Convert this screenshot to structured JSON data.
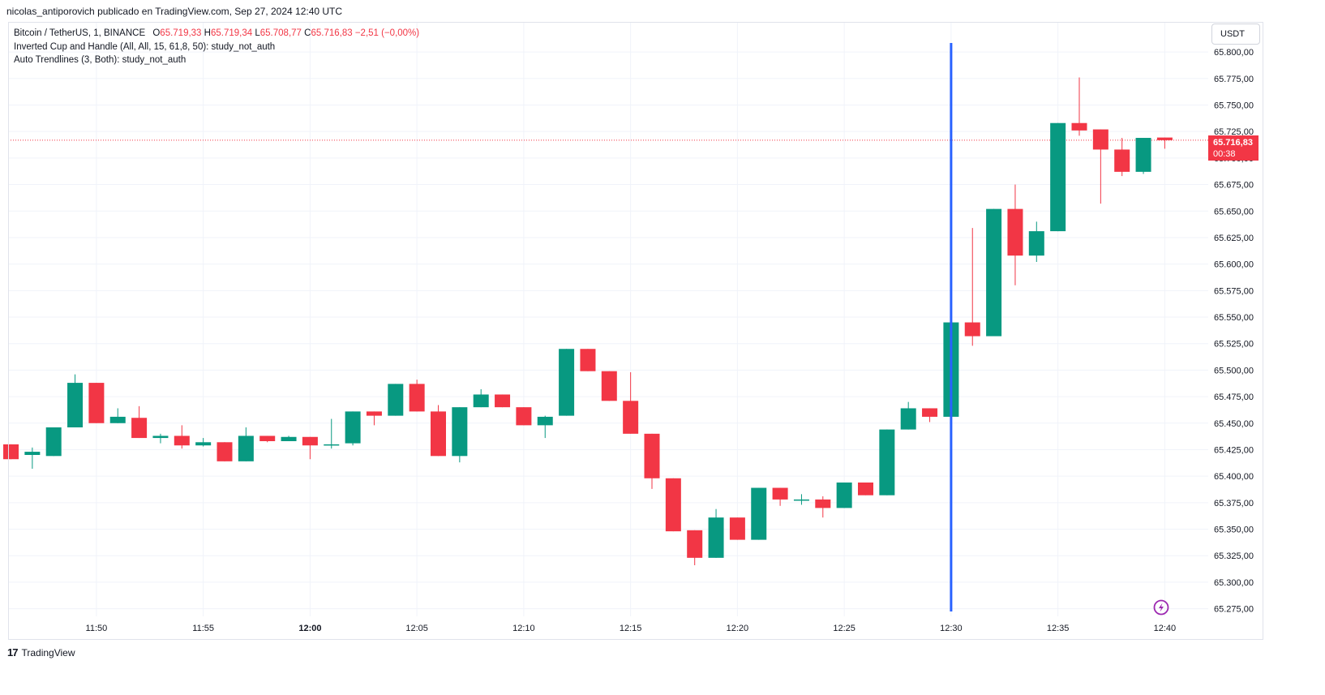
{
  "header": {
    "publisher_text": "nicolas_antiporovich publicado en TradingView.com, Sep 27, 2024 12:40 UTC"
  },
  "legend": {
    "symbol": "Bitcoin / TetherUS, 1, BINANCE",
    "o_label": "O",
    "o_value": "65.719,33",
    "h_label": "H",
    "h_value": "65.719,34",
    "l_label": "L",
    "l_value": "65.708,77",
    "c_label": "C",
    "c_value": "65.716,83",
    "change": "−2,51 (−0,00%)",
    "indicator1": "Inverted Cup and Handle (All, All, 15, 61,8, 50): study_not_auth",
    "indicator2": "Auto Trendlines (3, Both): study_not_auth"
  },
  "currency_button": "USDT",
  "last_price": {
    "value": "65.716,83",
    "countdown": "00:38"
  },
  "footer": {
    "brand": "TradingView",
    "logo": "17"
  },
  "colors": {
    "up": "#089981",
    "down": "#f23645",
    "marker": "#2962ff",
    "grid": "#f0f3fa",
    "text": "#131722"
  },
  "icons": {
    "alert": "lightning-bolt-icon"
  },
  "chart_data": {
    "type": "candlestick",
    "y_ticks": [
      65275,
      65300,
      65325,
      65350,
      65375,
      65400,
      65425,
      65450,
      65475,
      65500,
      65525,
      65550,
      65575,
      65600,
      65625,
      65650,
      65675,
      65700,
      65725,
      65750,
      65775,
      65800
    ],
    "y_tick_labels": [
      "65.275,00",
      "65.300,00",
      "65.325,00",
      "65.350,00",
      "65.375,00",
      "65.400,00",
      "65.425,00",
      "65.450,00",
      "65.475,00",
      "65.500,00",
      "65.525,00",
      "65.550,00",
      "65.575,00",
      "65.600,00",
      "65.625,00",
      "65.650,00",
      "65.675,00",
      "65.700,00",
      "65.725,00",
      "65.750,00",
      "65.775,00",
      "65.800,00"
    ],
    "x_tick_labels": [
      "11:50",
      "11:55",
      "12:00",
      "12:05",
      "12:10",
      "12:15",
      "12:20",
      "12:25",
      "12:30",
      "12:35",
      "12:40"
    ],
    "grid": true,
    "vertical_marker_time": "12:30",
    "candles": [
      {
        "t": "11:46",
        "o": 65430,
        "h": 65430,
        "l": 65416,
        "c": 65416
      },
      {
        "t": "11:47",
        "o": 65420,
        "h": 65427,
        "l": 65407,
        "c": 65423
      },
      {
        "t": "11:48",
        "o": 65419,
        "h": 65446,
        "l": 65419,
        "c": 65446
      },
      {
        "t": "11:49",
        "o": 65446,
        "h": 65496,
        "l": 65446,
        "c": 65488
      },
      {
        "t": "11:50",
        "o": 65488,
        "h": 65488,
        "l": 65450,
        "c": 65450
      },
      {
        "t": "11:51",
        "o": 65450,
        "h": 65464,
        "l": 65450,
        "c": 65456
      },
      {
        "t": "11:52",
        "o": 65455,
        "h": 65466,
        "l": 65436,
        "c": 65436
      },
      {
        "t": "11:53",
        "o": 65436,
        "h": 65440,
        "l": 65431,
        "c": 65438
      },
      {
        "t": "11:54",
        "o": 65438,
        "h": 65448,
        "l": 65426,
        "c": 65429
      },
      {
        "t": "11:55",
        "o": 65429,
        "h": 65436,
        "l": 65428,
        "c": 65432
      },
      {
        "t": "11:56",
        "o": 65432,
        "h": 65432,
        "l": 65414,
        "c": 65414
      },
      {
        "t": "11:57",
        "o": 65414,
        "h": 65446,
        "l": 65414,
        "c": 65438
      },
      {
        "t": "11:58",
        "o": 65438,
        "h": 65438,
        "l": 65432,
        "c": 65433
      },
      {
        "t": "11:59",
        "o": 65433,
        "h": 65438,
        "l": 65433,
        "c": 65437
      },
      {
        "t": "12:00",
        "o": 65437,
        "h": 65437,
        "l": 65416,
        "c": 65429
      },
      {
        "t": "12:01",
        "o": 65430,
        "h": 65454,
        "l": 65426,
        "c": 65430
      },
      {
        "t": "12:02",
        "o": 65431,
        "h": 65461,
        "l": 65429,
        "c": 65461
      },
      {
        "t": "12:03",
        "o": 65461,
        "h": 65461,
        "l": 65448,
        "c": 65457
      },
      {
        "t": "12:04",
        "o": 65457,
        "h": 65487,
        "l": 65457,
        "c": 65487
      },
      {
        "t": "12:05",
        "o": 65487,
        "h": 65491,
        "l": 65461,
        "c": 65461
      },
      {
        "t": "12:06",
        "o": 65461,
        "h": 65467,
        "l": 65419,
        "c": 65419
      },
      {
        "t": "12:07",
        "o": 65419,
        "h": 65465,
        "l": 65413,
        "c": 65465
      },
      {
        "t": "12:08",
        "o": 65465,
        "h": 65482,
        "l": 65465,
        "c": 65477
      },
      {
        "t": "12:09",
        "o": 65477,
        "h": 65477,
        "l": 65465,
        "c": 65465
      },
      {
        "t": "12:10",
        "o": 65465,
        "h": 65465,
        "l": 65448,
        "c": 65448
      },
      {
        "t": "12:11",
        "o": 65448,
        "h": 65457,
        "l": 65436,
        "c": 65456
      },
      {
        "t": "12:12",
        "o": 65457,
        "h": 65520,
        "l": 65457,
        "c": 65520
      },
      {
        "t": "12:13",
        "o": 65520,
        "h": 65520,
        "l": 65499,
        "c": 65499
      },
      {
        "t": "12:14",
        "o": 65499,
        "h": 65499,
        "l": 65471,
        "c": 65471
      },
      {
        "t": "12:15",
        "o": 65471,
        "h": 65498,
        "l": 65440,
        "c": 65440
      },
      {
        "t": "12:16",
        "o": 65440,
        "h": 65440,
        "l": 65388,
        "c": 65398
      },
      {
        "t": "12:17",
        "o": 65398,
        "h": 65398,
        "l": 65348,
        "c": 65348
      },
      {
        "t": "12:18",
        "o": 65349,
        "h": 65349,
        "l": 65316,
        "c": 65323
      },
      {
        "t": "12:19",
        "o": 65323,
        "h": 65369,
        "l": 65323,
        "c": 65361
      },
      {
        "t": "12:20",
        "o": 65361,
        "h": 65361,
        "l": 65340,
        "c": 65340
      },
      {
        "t": "12:21",
        "o": 65340,
        "h": 65389,
        "l": 65340,
        "c": 65389
      },
      {
        "t": "12:22",
        "o": 65389,
        "h": 65389,
        "l": 65372,
        "c": 65378
      },
      {
        "t": "12:23",
        "o": 65377,
        "h": 65383,
        "l": 65373,
        "c": 65378
      },
      {
        "t": "12:24",
        "o": 65378,
        "h": 65381,
        "l": 65361,
        "c": 65370
      },
      {
        "t": "12:25",
        "o": 65370,
        "h": 65394,
        "l": 65370,
        "c": 65394
      },
      {
        "t": "12:26",
        "o": 65394,
        "h": 65394,
        "l": 65382,
        "c": 65382
      },
      {
        "t": "12:27",
        "o": 65382,
        "h": 65444,
        "l": 65382,
        "c": 65444
      },
      {
        "t": "12:28",
        "o": 65444,
        "h": 65470,
        "l": 65444,
        "c": 65464
      },
      {
        "t": "12:29",
        "o": 65464,
        "h": 65464,
        "l": 65451,
        "c": 65456
      },
      {
        "t": "12:30",
        "o": 65456,
        "h": 65545,
        "l": 65456,
        "c": 65545
      },
      {
        "t": "12:31",
        "o": 65545,
        "h": 65634,
        "l": 65523,
        "c": 65532
      },
      {
        "t": "12:32",
        "o": 65532,
        "h": 65652,
        "l": 65532,
        "c": 65652
      },
      {
        "t": "12:33",
        "o": 65652,
        "h": 65675,
        "l": 65580,
        "c": 65608
      },
      {
        "t": "12:34",
        "o": 65608,
        "h": 65640,
        "l": 65602,
        "c": 65631
      },
      {
        "t": "12:35",
        "o": 65631,
        "h": 65733,
        "l": 65631,
        "c": 65733
      },
      {
        "t": "12:36",
        "o": 65733,
        "h": 65776,
        "l": 65721,
        "c": 65726
      },
      {
        "t": "12:37",
        "o": 65727,
        "h": 65727,
        "l": 65657,
        "c": 65708
      },
      {
        "t": "12:38",
        "o": 65708,
        "h": 65719,
        "l": 65683,
        "c": 65687
      },
      {
        "t": "12:39",
        "o": 65687,
        "h": 65719,
        "l": 65685,
        "c": 65719
      },
      {
        "t": "12:40",
        "o": 65719.33,
        "h": 65719.34,
        "l": 65708.77,
        "c": 65716.83
      }
    ]
  }
}
